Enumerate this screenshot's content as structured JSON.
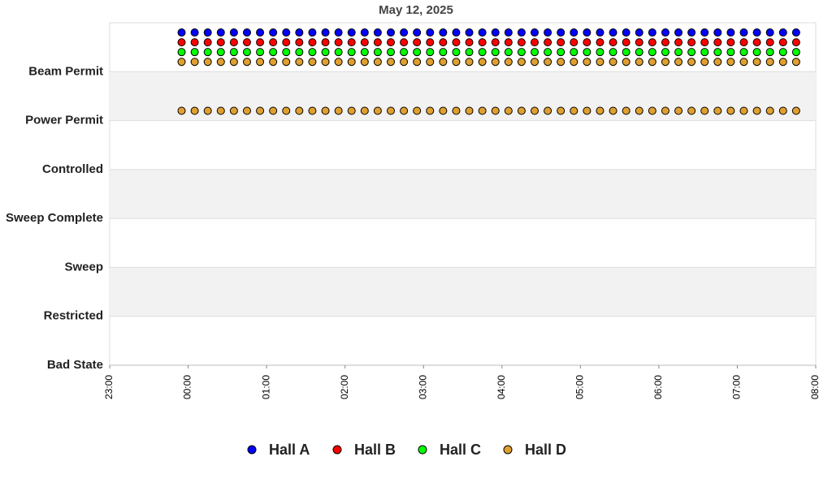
{
  "chart_data": {
    "type": "scatter",
    "title": "May 12, 2025",
    "xlim": [
      1380,
      1920
    ],
    "xticks": [
      {
        "value": 1380,
        "label": "23:00"
      },
      {
        "value": 1440,
        "label": "00:00"
      },
      {
        "value": 1500,
        "label": "01:00"
      },
      {
        "value": 1560,
        "label": "02:00"
      },
      {
        "value": 1620,
        "label": "03:00"
      },
      {
        "value": 1680,
        "label": "04:00"
      },
      {
        "value": 1740,
        "label": "05:00"
      },
      {
        "value": 1800,
        "label": "06:00"
      },
      {
        "value": 1860,
        "label": "07:00"
      },
      {
        "value": 1920,
        "label": "08:00"
      }
    ],
    "ylim": [
      0,
      7
    ],
    "yticks": [
      {
        "value": 0,
        "label": "Bad State"
      },
      {
        "value": 1,
        "label": "Restricted"
      },
      {
        "value": 2,
        "label": "Sweep"
      },
      {
        "value": 3,
        "label": "Sweep Complete"
      },
      {
        "value": 4,
        "label": "Controlled"
      },
      {
        "value": 5,
        "label": "Power Permit"
      },
      {
        "value": 6,
        "label": "Beam Permit"
      }
    ],
    "grid": true,
    "legend": "bottom",
    "x": [
      1435,
      1445,
      1455,
      1465,
      1475,
      1485,
      1495,
      1505,
      1515,
      1525,
      1535,
      1545,
      1555,
      1565,
      1575,
      1585,
      1595,
      1605,
      1615,
      1625,
      1635,
      1645,
      1655,
      1665,
      1675,
      1685,
      1695,
      1705,
      1715,
      1725,
      1735,
      1745,
      1755,
      1765,
      1775,
      1785,
      1795,
      1805,
      1815,
      1825,
      1835,
      1845,
      1855,
      1865,
      1875,
      1885,
      1895,
      1905
    ],
    "series": [
      {
        "name": "Hall A",
        "color": "#0000ff",
        "values": [
          6.8,
          6.8,
          6.8,
          6.8,
          6.8,
          6.8,
          6.8,
          6.8,
          6.8,
          6.8,
          6.8,
          6.8,
          6.8,
          6.8,
          6.8,
          6.8,
          6.8,
          6.8,
          6.8,
          6.8,
          6.8,
          6.8,
          6.8,
          6.8,
          6.8,
          6.8,
          6.8,
          6.8,
          6.8,
          6.8,
          6.8,
          6.8,
          6.8,
          6.8,
          6.8,
          6.8,
          6.8,
          6.8,
          6.8,
          6.8,
          6.8,
          6.8,
          6.8,
          6.8,
          6.8,
          6.8,
          6.8,
          6.8
        ]
      },
      {
        "name": "Hall B",
        "color": "#ff0000",
        "values": [
          6.6,
          6.6,
          6.6,
          6.6,
          6.6,
          6.6,
          6.6,
          6.6,
          6.6,
          6.6,
          6.6,
          6.6,
          6.6,
          6.6,
          6.6,
          6.6,
          6.6,
          6.6,
          6.6,
          6.6,
          6.6,
          6.6,
          6.6,
          6.6,
          6.6,
          6.6,
          6.6,
          6.6,
          6.6,
          6.6,
          6.6,
          6.6,
          6.6,
          6.6,
          6.6,
          6.6,
          6.6,
          6.6,
          6.6,
          6.6,
          6.6,
          6.6,
          6.6,
          6.6,
          6.6,
          6.6,
          6.6,
          6.6
        ]
      },
      {
        "name": "Hall C",
        "color": "#00ff00",
        "values": [
          6.4,
          6.4,
          6.4,
          6.4,
          6.4,
          6.4,
          6.4,
          6.4,
          6.4,
          6.4,
          6.4,
          6.4,
          6.4,
          6.4,
          6.4,
          6.4,
          6.4,
          6.4,
          6.4,
          6.4,
          6.4,
          6.4,
          6.4,
          6.4,
          6.4,
          6.4,
          6.4,
          6.4,
          6.4,
          6.4,
          6.4,
          6.4,
          6.4,
          6.4,
          6.4,
          6.4,
          6.4,
          6.4,
          6.4,
          6.4,
          6.4,
          6.4,
          6.4,
          6.4,
          6.4,
          6.4,
          6.4,
          6.4
        ]
      },
      {
        "name": "Hall D",
        "color": "#e0a030",
        "x": [
          1435,
          1445,
          1455,
          1465,
          1475,
          1485,
          1495,
          1505,
          1515,
          1525,
          1535,
          1545,
          1555,
          1565,
          1575,
          1585,
          1595,
          1605,
          1615,
          1625,
          1635,
          1645,
          1655,
          1665,
          1675,
          1685,
          1695,
          1705,
          1715,
          1725,
          1735,
          1745,
          1755,
          1765,
          1775,
          1785,
          1795,
          1805,
          1815,
          1825,
          1835,
          1845,
          1855,
          1865,
          1875,
          1885,
          1895,
          1905,
          1435,
          1445,
          1455,
          1465,
          1475,
          1485,
          1495,
          1505,
          1515,
          1525,
          1535,
          1545,
          1555,
          1565,
          1575,
          1585,
          1595,
          1605,
          1615,
          1625,
          1635,
          1645,
          1655,
          1665,
          1675,
          1685,
          1695,
          1705,
          1715,
          1725,
          1735,
          1745,
          1755,
          1765,
          1775,
          1785,
          1795,
          1805,
          1815,
          1825,
          1835,
          1845,
          1855,
          1865,
          1875,
          1885,
          1895,
          1905
        ],
        "values": [
          6.2,
          6.2,
          6.2,
          6.2,
          6.2,
          6.2,
          6.2,
          6.2,
          6.2,
          6.2,
          6.2,
          6.2,
          6.2,
          6.2,
          6.2,
          6.2,
          6.2,
          6.2,
          6.2,
          6.2,
          6.2,
          6.2,
          6.2,
          6.2,
          6.2,
          6.2,
          6.2,
          6.2,
          6.2,
          6.2,
          6.2,
          6.2,
          6.2,
          6.2,
          6.2,
          6.2,
          6.2,
          6.2,
          6.2,
          6.2,
          6.2,
          6.2,
          6.2,
          6.2,
          6.2,
          6.2,
          6.2,
          6.2,
          5.2,
          5.2,
          5.2,
          5.2,
          5.2,
          5.2,
          5.2,
          5.2,
          5.2,
          5.2,
          5.2,
          5.2,
          5.2,
          5.2,
          5.2,
          5.2,
          5.2,
          5.2,
          5.2,
          5.2,
          5.2,
          5.2,
          5.2,
          5.2,
          5.2,
          5.2,
          5.2,
          5.2,
          5.2,
          5.2,
          5.2,
          5.2,
          5.2,
          5.2,
          5.2,
          5.2,
          5.2,
          5.2,
          5.2,
          5.2,
          5.2,
          5.2,
          5.2,
          5.2,
          5.2,
          5.2,
          5.2,
          5.2
        ]
      }
    ]
  }
}
